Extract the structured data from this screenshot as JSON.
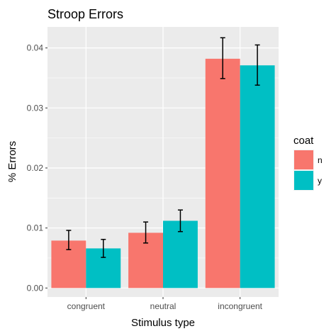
{
  "chart_data": {
    "type": "bar",
    "title": "Stroop Errors",
    "xlabel": "Stimulus type",
    "ylabel": "% Errors",
    "categories": [
      "congruent",
      "neutral",
      "incongruent"
    ],
    "ylim": [
      -0.0015,
      0.0435
    ],
    "yticks": [
      0.0,
      0.01,
      0.02,
      0.03,
      0.04
    ],
    "ytick_labels": [
      "0.00",
      "0.01",
      "0.02",
      "0.03",
      "0.04"
    ],
    "legend": {
      "title": "coat",
      "position": "right"
    },
    "grid": true,
    "series": [
      {
        "name": "n",
        "color": "#F8766D",
        "values": [
          0.0079,
          0.0092,
          0.0382
        ],
        "error_low": [
          0.0064,
          0.0075,
          0.0349
        ],
        "error_high": [
          0.0096,
          0.011,
          0.0417
        ]
      },
      {
        "name": "y",
        "color": "#00BFC4",
        "values": [
          0.0066,
          0.0112,
          0.0371
        ],
        "error_low": [
          0.0051,
          0.0094,
          0.0338
        ],
        "error_high": [
          0.0081,
          0.013,
          0.0405
        ]
      }
    ],
    "panel_color": "#EBEBEB",
    "grid_color": "#FFFFFF"
  }
}
